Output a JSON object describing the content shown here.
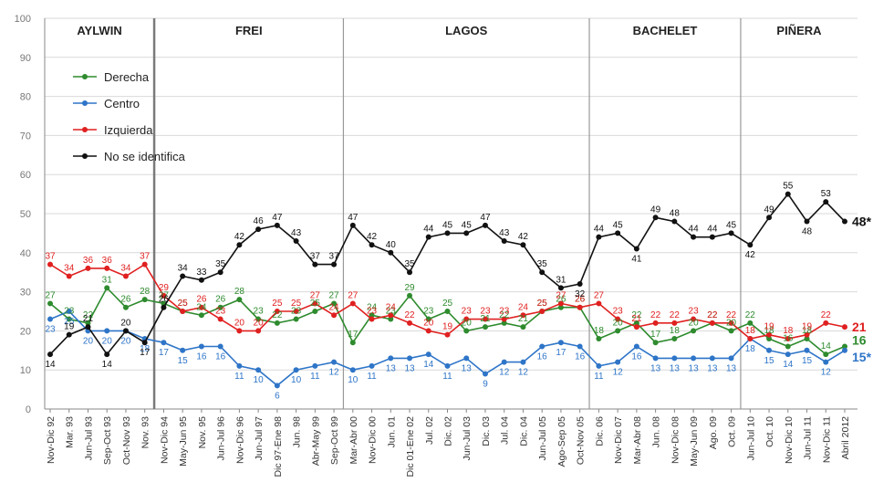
{
  "chart_data": {
    "type": "line",
    "ylim": [
      0,
      100
    ],
    "yticks": [
      0,
      10,
      20,
      30,
      40,
      50,
      60,
      70,
      80,
      90,
      100
    ],
    "categories": [
      "Nov-Dic 92",
      "Mar. 93",
      "Jun-Jul 93",
      "Sep-Oct 93",
      "Oct-Nov 93",
      "Nov. 93",
      "Nov-Dic 94",
      "May-Jun 95",
      "Nov. 95",
      "Jun-Jul 96",
      "Nov-Dic 96",
      "Jun-Jul 97",
      "Dic 97-Ene 98",
      "Jun. 98",
      "Abr-May 99",
      "Sep-Oct 99",
      "Mar-Abr 00",
      "Nov-Dic 00",
      "Jun. 01",
      "Dic 01-Ene 02",
      "Jul. 02",
      "Dic. 02",
      "Jun-Jul 03",
      "Dic. 03",
      "Jul. 04",
      "Dic. 04",
      "Jun-Jul 05",
      "Ago-Sep 05",
      "Oct-Nov 05",
      "Dic. 06",
      "Nov-Dic 07",
      "Mar-Abr 08",
      "Jun. 08",
      "Nov-Dic 08",
      "May-Jun 09",
      "Ago. 09",
      "Oct. 09",
      "Jun-Jul 10",
      "Oct. 10",
      "Nov-Dic 10",
      "Jun-Jul 11",
      "Nov-Dic 11",
      "Abril 2012"
    ],
    "periods": [
      {
        "label": "AYLWIN",
        "start": 0,
        "end": 5
      },
      {
        "label": "FREI",
        "start": 6,
        "end": 15
      },
      {
        "label": "LAGOS",
        "start": 16,
        "end": 28
      },
      {
        "label": "BACHELET",
        "start": 29,
        "end": 36
      },
      {
        "label": "PIÑERA",
        "start": 37,
        "end": 42
      }
    ],
    "legend": {
      "placement": "top-left"
    },
    "series": [
      {
        "name": "Derecha",
        "color": "#2e8b2e",
        "values": [
          27,
          23,
          22,
          31,
          26,
          28,
          27,
          25,
          24,
          26,
          28,
          23,
          22,
          23,
          25,
          27,
          17,
          24,
          23,
          29,
          23,
          25,
          20,
          21,
          22,
          21,
          25,
          26,
          26,
          18,
          20,
          22,
          17,
          18,
          20,
          22,
          20,
          22,
          18,
          16,
          18,
          14,
          16
        ],
        "end_label": "16"
      },
      {
        "name": "Centro",
        "color": "#2e75c8",
        "values": [
          23,
          25,
          20,
          20,
          20,
          18,
          17,
          15,
          16,
          16,
          11,
          10,
          6,
          10,
          11,
          12,
          10,
          11,
          13,
          13,
          14,
          11,
          13,
          9,
          12,
          12,
          16,
          17,
          16,
          11,
          12,
          16,
          13,
          13,
          13,
          13,
          13,
          18,
          15,
          14,
          15,
          12,
          15
        ],
        "end_label": "15*"
      },
      {
        "name": "Izquierda",
        "color": "#e02020",
        "values": [
          37,
          34,
          36,
          36,
          34,
          37,
          29,
          25,
          26,
          23,
          20,
          20,
          25,
          25,
          27,
          24,
          27,
          23,
          24,
          22,
          20,
          19,
          23,
          23,
          23,
          24,
          25,
          27,
          26,
          27,
          23,
          21,
          22,
          22,
          23,
          22,
          22,
          18,
          19,
          18,
          19,
          22,
          21
        ],
        "end_label": "21"
      },
      {
        "name": "No se identifica",
        "color": "#111111",
        "values": [
          14,
          19,
          21,
          14,
          20,
          17,
          26,
          34,
          33,
          35,
          42,
          46,
          47,
          43,
          37,
          37,
          47,
          42,
          40,
          35,
          44,
          45,
          45,
          47,
          43,
          42,
          35,
          31,
          32,
          44,
          45,
          41,
          49,
          48,
          44,
          44,
          45,
          42,
          49,
          55,
          48,
          53,
          48
        ],
        "end_label": "48*"
      }
    ]
  }
}
